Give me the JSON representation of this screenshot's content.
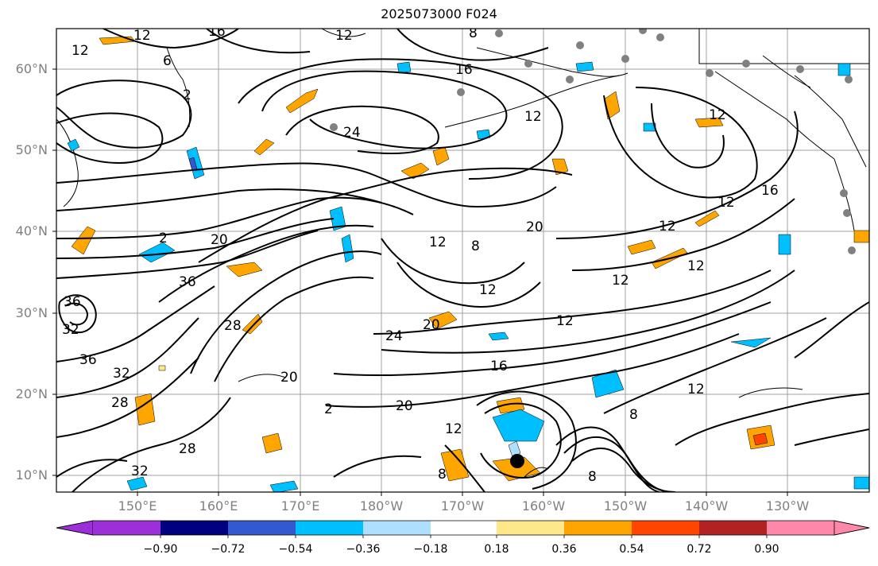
{
  "title": "2025073000 F024",
  "map": {
    "lat_labels": [
      "60°N",
      "50°N",
      "40°N",
      "30°N",
      "20°N",
      "10°N"
    ],
    "lon_labels": [
      "150°E",
      "160°E",
      "170°E",
      "180°W",
      "170°W",
      "160°W",
      "150°W",
      "140°W",
      "130°W"
    ],
    "contour_labels": [
      "12",
      "16",
      "12",
      "8",
      "16",
      "12",
      "6",
      "2",
      "12",
      "24",
      "12",
      "16",
      "12",
      "20",
      "12",
      "8",
      "12",
      "20",
      "2",
      "36",
      "36",
      "32",
      "28",
      "36",
      "32",
      "28",
      "20",
      "24",
      "20",
      "12",
      "16",
      "12",
      "8",
      "12",
      "32",
      "28",
      "2",
      "20",
      "12",
      "8",
      "8",
      "12",
      "12"
    ],
    "storm_center_icon": "black-dot-icon",
    "station_marker_icon": "gray-dot-icon"
  },
  "colorbar": {
    "ticks": [
      "−0.90",
      "−0.72",
      "−0.54",
      "−0.36",
      "−0.18",
      "0.18",
      "0.36",
      "0.54",
      "0.72",
      "0.90"
    ],
    "colors": [
      "#9b30d9",
      "#000080",
      "#3359d1",
      "#00bfff",
      "#afdfff",
      "#ffffff",
      "#ffe88a",
      "#ffa500",
      "#ff4500",
      "#b22222",
      "#ff88aa"
    ]
  }
}
